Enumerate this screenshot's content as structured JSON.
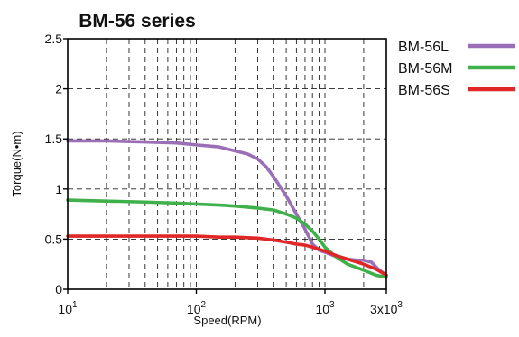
{
  "chart_data": {
    "type": "line",
    "title": "BM-56 series",
    "xlabel": "Speed(RPM)",
    "ylabel": "Torque(N•m)",
    "x_scale": "log",
    "xlim": [
      10,
      3000
    ],
    "ylim": [
      0,
      2.5
    ],
    "grid": true,
    "legend_position": "right",
    "x_tick_labels": [
      {
        "value": 10,
        "base": "10",
        "exp": "1"
      },
      {
        "value": 100,
        "base": "10",
        "exp": "2"
      },
      {
        "value": 1000,
        "base": "10",
        "exp": "3"
      },
      {
        "value": 3000,
        "base": "3x10",
        "exp": "3"
      }
    ],
    "y_ticks": [
      {
        "value": 0,
        "label": "0"
      },
      {
        "value": 0.5,
        "label": "0.5"
      },
      {
        "value": 1,
        "label": "1"
      },
      {
        "value": 1.5,
        "label": "1.5"
      },
      {
        "value": 2,
        "label": "2"
      },
      {
        "value": 2.5,
        "label": "2.5"
      }
    ],
    "series": [
      {
        "name": "BM-56L",
        "color": "#9b6fb8",
        "points": [
          [
            10,
            1.48
          ],
          [
            20,
            1.48
          ],
          [
            40,
            1.47
          ],
          [
            70,
            1.46
          ],
          [
            100,
            1.44
          ],
          [
            150,
            1.42
          ],
          [
            200,
            1.38
          ],
          [
            250,
            1.35
          ],
          [
            300,
            1.3
          ],
          [
            350,
            1.22
          ],
          [
            400,
            1.12
          ],
          [
            500,
            0.93
          ],
          [
            600,
            0.75
          ],
          [
            700,
            0.6
          ],
          [
            800,
            0.45
          ],
          [
            900,
            0.39
          ],
          [
            1000,
            0.37
          ],
          [
            1200,
            0.33
          ],
          [
            1500,
            0.3
          ],
          [
            1800,
            0.29
          ],
          [
            2000,
            0.29
          ],
          [
            2300,
            0.27
          ],
          [
            2600,
            0.2
          ],
          [
            3000,
            0.14
          ]
        ]
      },
      {
        "name": "BM-56M",
        "color": "#3fb04a",
        "points": [
          [
            10,
            0.89
          ],
          [
            20,
            0.88
          ],
          [
            40,
            0.87
          ],
          [
            70,
            0.86
          ],
          [
            100,
            0.85
          ],
          [
            150,
            0.84
          ],
          [
            200,
            0.83
          ],
          [
            300,
            0.81
          ],
          [
            400,
            0.79
          ],
          [
            500,
            0.75
          ],
          [
            600,
            0.71
          ],
          [
            700,
            0.65
          ],
          [
            800,
            0.58
          ],
          [
            900,
            0.5
          ],
          [
            1000,
            0.42
          ],
          [
            1200,
            0.33
          ],
          [
            1500,
            0.25
          ],
          [
            2000,
            0.19
          ],
          [
            2500,
            0.14
          ],
          [
            3000,
            0.12
          ]
        ]
      },
      {
        "name": "BM-56S",
        "color": "#e02626",
        "points": [
          [
            10,
            0.53
          ],
          [
            30,
            0.53
          ],
          [
            60,
            0.53
          ],
          [
            100,
            0.53
          ],
          [
            150,
            0.52
          ],
          [
            200,
            0.52
          ],
          [
            300,
            0.51
          ],
          [
            400,
            0.49
          ],
          [
            500,
            0.47
          ],
          [
            600,
            0.45
          ],
          [
            700,
            0.44
          ],
          [
            800,
            0.42
          ],
          [
            1000,
            0.38
          ],
          [
            1200,
            0.34
          ],
          [
            1500,
            0.3
          ],
          [
            2000,
            0.25
          ],
          [
            2500,
            0.2
          ],
          [
            3000,
            0.14
          ]
        ]
      }
    ]
  }
}
